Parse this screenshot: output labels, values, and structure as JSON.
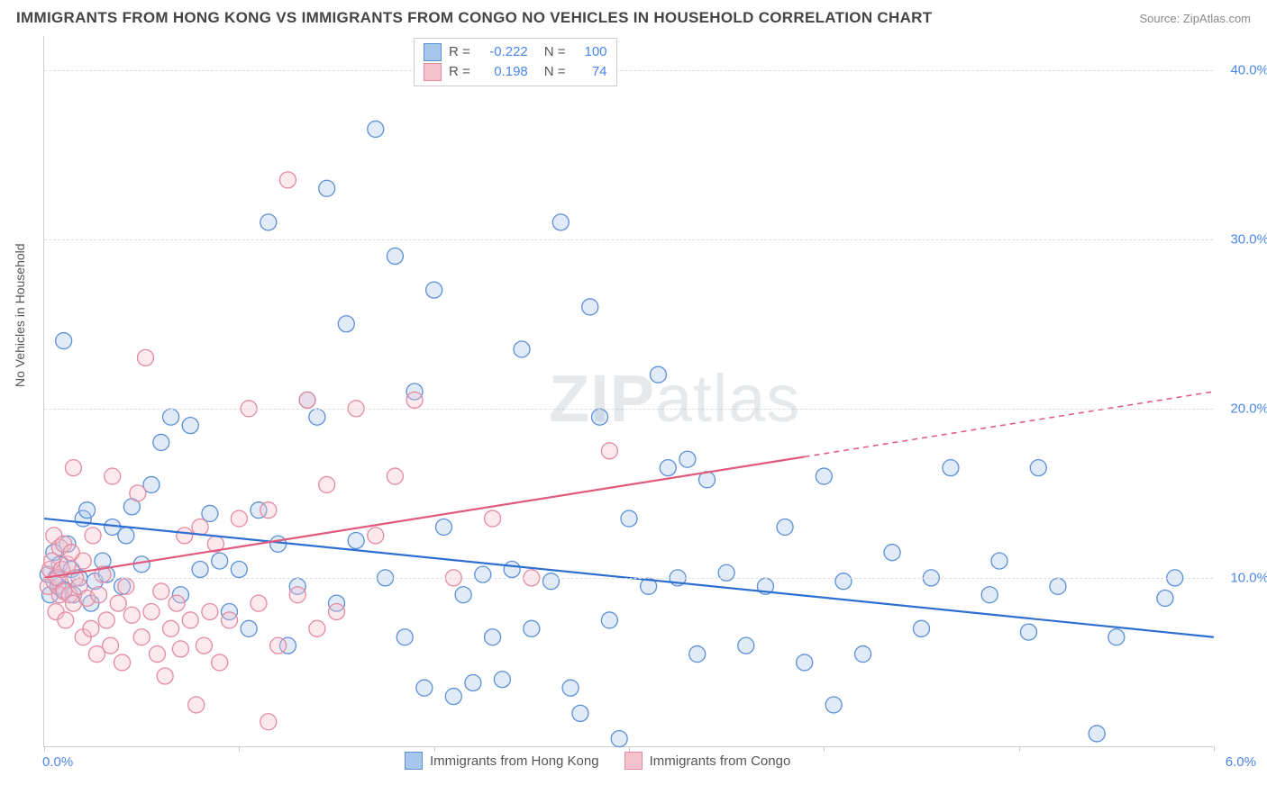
{
  "title": "IMMIGRANTS FROM HONG KONG VS IMMIGRANTS FROM CONGO NO VEHICLES IN HOUSEHOLD CORRELATION CHART",
  "source": "Source: ZipAtlas.com",
  "ylabel": "No Vehicles in Household",
  "watermark": {
    "bold": "ZIP",
    "rest": "atlas"
  },
  "chart": {
    "type": "scatter",
    "xlim": [
      0.0,
      6.0
    ],
    "ylim": [
      0.0,
      42.0
    ],
    "xtick_positions": [
      0.0,
      1.0,
      2.0,
      3.0,
      4.0,
      5.0,
      6.0
    ],
    "ytick_positions": [
      10.0,
      20.0,
      30.0,
      40.0
    ],
    "ytick_labels": [
      "10.0%",
      "20.0%",
      "30.0%",
      "40.0%"
    ],
    "xlim_labels": [
      "0.0%",
      "6.0%"
    ],
    "grid_color": "#dddddd",
    "border_color": "#cccccc",
    "background_color": "#ffffff",
    "tick_label_color": "#4a86e8",
    "axis_label_color": "#555555",
    "marker_radius": 9,
    "marker_fill_opacity": 0.35,
    "marker_stroke_width": 1.3,
    "trend_line_width": 2.2,
    "trend_dash_pattern": "6,5"
  },
  "series": [
    {
      "key": "hongkong",
      "label": "Immigrants from Hong Kong",
      "color_stroke": "#5b8fd6",
      "color_fill": "#a8c5eb",
      "trend_color": "#2f6fd0",
      "R": "-0.222",
      "N": "100",
      "trend": {
        "x1": 0.0,
        "y1": 13.5,
        "x2": 6.0,
        "y2": 6.5
      },
      "trend_dash_from_x": 6.1,
      "points": [
        [
          0.02,
          10.2
        ],
        [
          0.03,
          9.0
        ],
        [
          0.05,
          11.5
        ],
        [
          0.06,
          10.0
        ],
        [
          0.07,
          9.5
        ],
        [
          0.08,
          10.8
        ],
        [
          0.1,
          9.3
        ],
        [
          0.12,
          12.0
        ],
        [
          0.1,
          24.0
        ],
        [
          0.14,
          10.5
        ],
        [
          0.15,
          9.0
        ],
        [
          0.18,
          10.0
        ],
        [
          0.2,
          13.5
        ],
        [
          0.22,
          14.0
        ],
        [
          0.24,
          8.5
        ],
        [
          0.26,
          9.8
        ],
        [
          0.3,
          11.0
        ],
        [
          0.32,
          10.2
        ],
        [
          0.35,
          13.0
        ],
        [
          0.4,
          9.5
        ],
        [
          0.42,
          12.5
        ],
        [
          0.45,
          14.2
        ],
        [
          0.5,
          10.8
        ],
        [
          0.55,
          15.5
        ],
        [
          0.6,
          18.0
        ],
        [
          0.65,
          19.5
        ],
        [
          0.7,
          9.0
        ],
        [
          0.75,
          19.0
        ],
        [
          0.8,
          10.5
        ],
        [
          0.85,
          13.8
        ],
        [
          0.9,
          11.0
        ],
        [
          0.95,
          8.0
        ],
        [
          1.0,
          10.5
        ],
        [
          1.05,
          7.0
        ],
        [
          1.1,
          14.0
        ],
        [
          1.15,
          31.0
        ],
        [
          1.2,
          12.0
        ],
        [
          1.25,
          6.0
        ],
        [
          1.3,
          9.5
        ],
        [
          1.35,
          20.5
        ],
        [
          1.4,
          19.5
        ],
        [
          1.45,
          33.0
        ],
        [
          1.5,
          8.5
        ],
        [
          1.55,
          25.0
        ],
        [
          1.6,
          12.2
        ],
        [
          1.7,
          36.5
        ],
        [
          1.75,
          10.0
        ],
        [
          1.8,
          29.0
        ],
        [
          1.85,
          6.5
        ],
        [
          1.9,
          21.0
        ],
        [
          1.95,
          3.5
        ],
        [
          2.0,
          27.0
        ],
        [
          2.05,
          13.0
        ],
        [
          2.1,
          3.0
        ],
        [
          2.15,
          9.0
        ],
        [
          2.2,
          3.8
        ],
        [
          2.25,
          10.2
        ],
        [
          2.3,
          6.5
        ],
        [
          2.35,
          4.0
        ],
        [
          2.4,
          10.5
        ],
        [
          2.45,
          23.5
        ],
        [
          2.5,
          7.0
        ],
        [
          2.6,
          9.8
        ],
        [
          2.65,
          31.0
        ],
        [
          2.7,
          3.5
        ],
        [
          2.75,
          2.0
        ],
        [
          2.8,
          26.0
        ],
        [
          2.85,
          19.5
        ],
        [
          2.9,
          7.5
        ],
        [
          2.95,
          0.5
        ],
        [
          3.0,
          13.5
        ],
        [
          3.1,
          9.5
        ],
        [
          3.15,
          22.0
        ],
        [
          3.2,
          16.5
        ],
        [
          3.25,
          10.0
        ],
        [
          3.3,
          17.0
        ],
        [
          3.35,
          5.5
        ],
        [
          3.4,
          15.8
        ],
        [
          3.5,
          10.3
        ],
        [
          3.6,
          6.0
        ],
        [
          3.7,
          9.5
        ],
        [
          3.8,
          13.0
        ],
        [
          3.9,
          5.0
        ],
        [
          4.0,
          16.0
        ],
        [
          4.05,
          2.5
        ],
        [
          4.1,
          9.8
        ],
        [
          4.2,
          5.5
        ],
        [
          4.35,
          11.5
        ],
        [
          4.5,
          7.0
        ],
        [
          4.55,
          10.0
        ],
        [
          4.65,
          16.5
        ],
        [
          4.85,
          9.0
        ],
        [
          4.9,
          11.0
        ],
        [
          5.05,
          6.8
        ],
        [
          5.1,
          16.5
        ],
        [
          5.2,
          9.5
        ],
        [
          5.4,
          0.8
        ],
        [
          5.5,
          6.5
        ],
        [
          5.75,
          8.8
        ],
        [
          5.8,
          10.0
        ]
      ]
    },
    {
      "key": "congo",
      "label": "Immigrants from Congo",
      "color_stroke": "#e48aa0",
      "color_fill": "#f4c1cd",
      "trend_color": "#e05a7d",
      "R": "0.198",
      "N": "74",
      "trend": {
        "x1": 0.0,
        "y1": 10.0,
        "x2": 6.0,
        "y2": 21.0
      },
      "trend_dash_from_x": 3.9,
      "points": [
        [
          0.02,
          9.5
        ],
        [
          0.03,
          10.5
        ],
        [
          0.04,
          11.0
        ],
        [
          0.05,
          9.8
        ],
        [
          0.05,
          12.5
        ],
        [
          0.06,
          8.0
        ],
        [
          0.07,
          10.0
        ],
        [
          0.08,
          11.8
        ],
        [
          0.08,
          9.0
        ],
        [
          0.09,
          10.5
        ],
        [
          0.1,
          9.2
        ],
        [
          0.1,
          12.0
        ],
        [
          0.11,
          7.5
        ],
        [
          0.12,
          10.8
        ],
        [
          0.13,
          9.0
        ],
        [
          0.14,
          11.5
        ],
        [
          0.15,
          16.5
        ],
        [
          0.15,
          8.5
        ],
        [
          0.16,
          10.0
        ],
        [
          0.18,
          9.5
        ],
        [
          0.2,
          11.0
        ],
        [
          0.2,
          6.5
        ],
        [
          0.22,
          8.8
        ],
        [
          0.24,
          7.0
        ],
        [
          0.25,
          12.5
        ],
        [
          0.27,
          5.5
        ],
        [
          0.28,
          9.0
        ],
        [
          0.3,
          10.2
        ],
        [
          0.32,
          7.5
        ],
        [
          0.34,
          6.0
        ],
        [
          0.35,
          16.0
        ],
        [
          0.38,
          8.5
        ],
        [
          0.4,
          5.0
        ],
        [
          0.42,
          9.5
        ],
        [
          0.45,
          7.8
        ],
        [
          0.48,
          15.0
        ],
        [
          0.5,
          6.5
        ],
        [
          0.52,
          23.0
        ],
        [
          0.55,
          8.0
        ],
        [
          0.58,
          5.5
        ],
        [
          0.6,
          9.2
        ],
        [
          0.62,
          4.2
        ],
        [
          0.65,
          7.0
        ],
        [
          0.68,
          8.5
        ],
        [
          0.7,
          5.8
        ],
        [
          0.72,
          12.5
        ],
        [
          0.75,
          7.5
        ],
        [
          0.78,
          2.5
        ],
        [
          0.8,
          13.0
        ],
        [
          0.82,
          6.0
        ],
        [
          0.85,
          8.0
        ],
        [
          0.88,
          12.0
        ],
        [
          0.9,
          5.0
        ],
        [
          0.95,
          7.5
        ],
        [
          1.0,
          13.5
        ],
        [
          1.05,
          20.0
        ],
        [
          1.1,
          8.5
        ],
        [
          1.15,
          14.0
        ],
        [
          1.2,
          6.0
        ],
        [
          1.25,
          33.5
        ],
        [
          1.3,
          9.0
        ],
        [
          1.35,
          20.5
        ],
        [
          1.4,
          7.0
        ],
        [
          1.45,
          15.5
        ],
        [
          1.5,
          8.0
        ],
        [
          1.6,
          20.0
        ],
        [
          1.7,
          12.5
        ],
        [
          1.8,
          16.0
        ],
        [
          1.9,
          20.5
        ],
        [
          2.1,
          10.0
        ],
        [
          2.3,
          13.5
        ],
        [
          2.5,
          10.0
        ],
        [
          2.9,
          17.5
        ],
        [
          1.15,
          1.5
        ]
      ]
    }
  ],
  "stats_legend": {
    "R_label": "R =",
    "N_label": "N ="
  }
}
